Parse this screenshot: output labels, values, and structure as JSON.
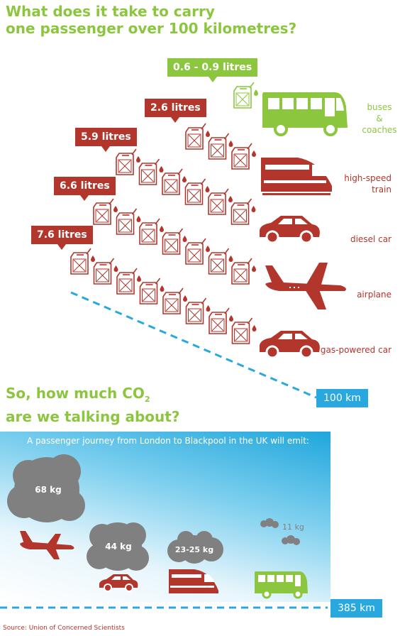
{
  "header": {
    "title_line1": "What does it take to carry",
    "title_line2": "one passenger over 100 kilometres?"
  },
  "chart_data": [
    {
      "type": "bar",
      "title": "What does it take to carry one passenger over 100 kilometres?",
      "unit": "litres",
      "categories": [
        "buses & coaches",
        "high-speed train",
        "diesel car",
        "airplane",
        "gas-powered car"
      ],
      "value_labels": [
        "0.6 - 0.9 litres",
        "2.6 litres",
        "5.9 litres",
        "6.6 litres",
        "7.6 litres"
      ],
      "values": [
        0.75,
        2.6,
        5.9,
        6.6,
        7.6
      ],
      "distance_label": "100 km"
    },
    {
      "type": "bar",
      "title": "So, how much CO2 are we talking about?",
      "subtitle": "A passenger journey from London to Blackpool in the UK will emit:",
      "categories": [
        "airplane",
        "car",
        "train",
        "bus"
      ],
      "value_labels": [
        "68 kg",
        "44 kg",
        "23-25 kg",
        "11 kg"
      ],
      "values": [
        68,
        44,
        24,
        11
      ],
      "distance_label": "385 km"
    }
  ],
  "modes": {
    "bus_line1": "buses",
    "bus_line2": "&",
    "bus_line3": "coaches",
    "train_line1": "high-speed",
    "train_line2": "train",
    "diesel": "diesel car",
    "airplane": "airplane",
    "gas": "gas-powered car"
  },
  "co2": {
    "title_part1": "So, how much CO",
    "title_sub": "2",
    "title_line2": "are we talking about?"
  },
  "source": "Source: Union of Concerned Scientists",
  "colors": {
    "red": "#b2362c",
    "green": "#8cc63f",
    "blue": "#29a8e0",
    "cloud": "#808080"
  },
  "icons": {
    "fuel": "jerrycan-icon",
    "bus": "bus-icon",
    "train": "train-icon",
    "car": "car-icon",
    "plane": "airplane-icon",
    "cloud": "cloud-icon"
  }
}
